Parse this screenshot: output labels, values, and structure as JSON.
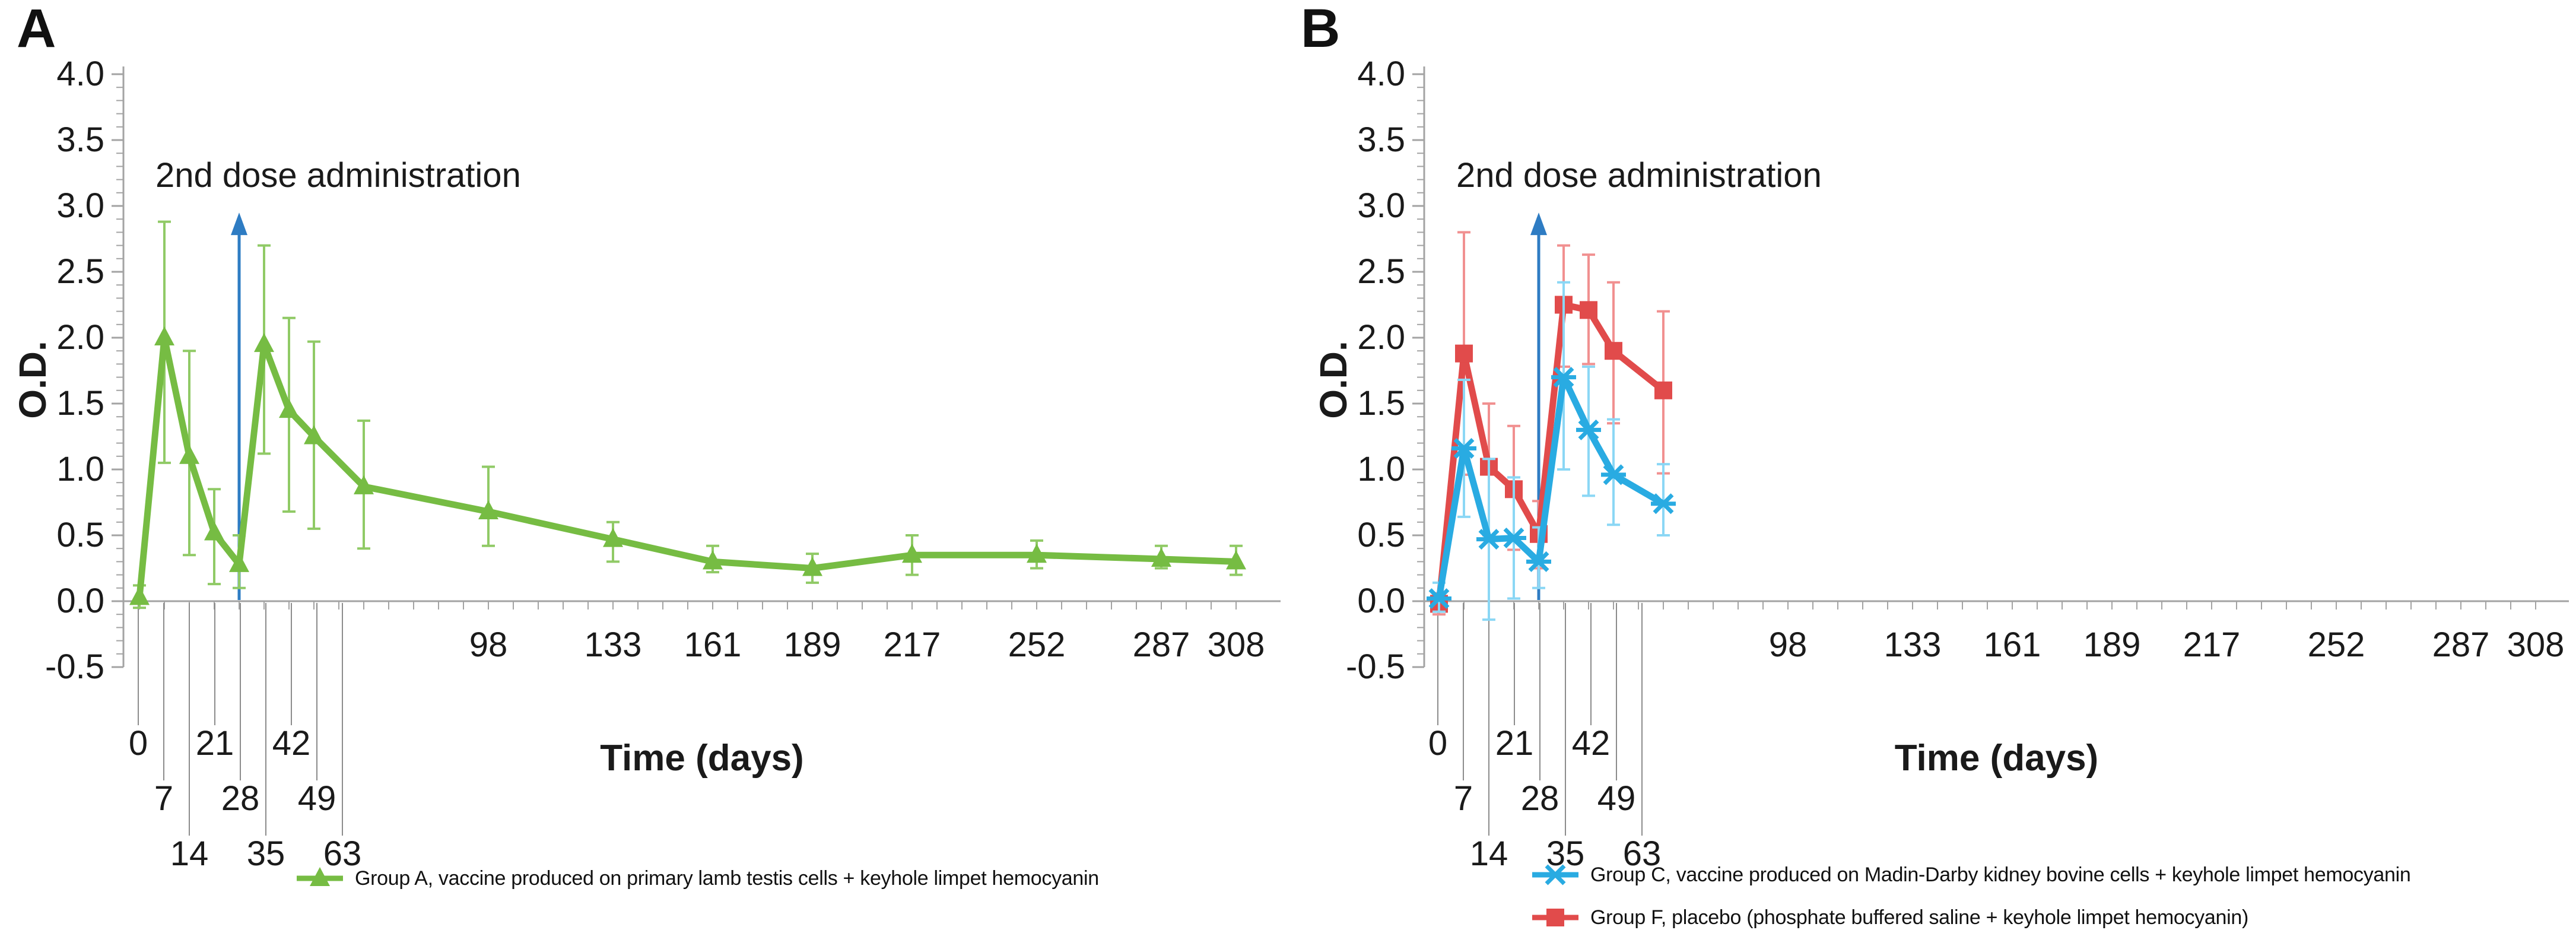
{
  "figure": {
    "background": "#ffffff"
  },
  "shared": {
    "colors": {
      "axis": "#a3a3a3",
      "leader_line": "#8c8c8c",
      "text": "#1a1a1a"
    },
    "y_axis": {
      "title": "O.D.",
      "min": -0.5,
      "max": 4.0,
      "major_tick_labels": [
        "4.0",
        "3.5",
        "3.0",
        "2.5",
        "2.0",
        "1.5",
        "1.0",
        "0.5",
        "0.0",
        "-0.5"
      ],
      "minor_step": 0.1
    },
    "x_axis": {
      "title": "Time (days)",
      "staggered_tick_labels": [
        0,
        7,
        14,
        21,
        28,
        35,
        42,
        49,
        63
      ],
      "inline_tick_labels": [
        98,
        133,
        161,
        189,
        217,
        252,
        287,
        308
      ],
      "minor_tick_step_days": 7,
      "max_day": 308
    },
    "annotation": {
      "text": "2nd dose administration",
      "day": 28,
      "arrow_top_od": 2.95,
      "arrow_color": "#2e7cc3"
    }
  },
  "chart_data": [
    {
      "type": "line",
      "panel_label": "A",
      "xlabel": "Time (days)",
      "ylabel": "O.D.",
      "ylim": [
        -0.5,
        4.0
      ],
      "grid": false,
      "series": [
        {
          "name": "Group A, vaccine produced on primary lamb testis cells + keyhole limpet hemocyanin",
          "color": "#76bc43",
          "error_color": "#90ca66",
          "marker": "triangle",
          "x": [
            0,
            7,
            14,
            21,
            28,
            35,
            42,
            49,
            63,
            98,
            133,
            161,
            189,
            217,
            252,
            287,
            308
          ],
          "y": [
            0.03,
            2.0,
            1.1,
            0.52,
            0.28,
            1.95,
            1.45,
            1.25,
            0.87,
            0.68,
            0.47,
            0.3,
            0.25,
            0.35,
            0.35,
            0.32,
            0.3
          ],
          "err_lo": [
            -0.05,
            1.05,
            0.35,
            0.13,
            0.1,
            1.12,
            0.68,
            0.55,
            0.4,
            0.42,
            0.3,
            0.22,
            0.14,
            0.2,
            0.25,
            0.25,
            0.2
          ],
          "err_hi": [
            0.12,
            2.88,
            1.9,
            0.85,
            0.5,
            2.7,
            2.15,
            1.97,
            1.37,
            1.02,
            0.6,
            0.42,
            0.36,
            0.5,
            0.46,
            0.42,
            0.42
          ]
        }
      ],
      "legend": [
        {
          "marker": "triangle",
          "color": "#76bc43",
          "text": "Group A, vaccine produced on primary lamb testis cells + keyhole limpet hemocyanin"
        }
      ]
    },
    {
      "type": "line",
      "panel_label": "B",
      "xlabel": "Time (days)",
      "ylabel": "O.D.",
      "ylim": [
        -0.5,
        4.0
      ],
      "grid": false,
      "series": [
        {
          "name": "Group F, placebo (phosphate buffered saline + keyhole limpet hemocyanin)",
          "color": "#e14b4b",
          "error_color": "#f19090",
          "marker": "square",
          "x": [
            0,
            7,
            14,
            21,
            28,
            35,
            42,
            49,
            63
          ],
          "y": [
            -0.02,
            1.88,
            1.02,
            0.85,
            0.51,
            2.25,
            2.21,
            1.9,
            1.6
          ],
          "err_lo": [
            -0.1,
            0.96,
            0.5,
            0.39,
            0.25,
            1.78,
            1.8,
            1.35,
            0.97
          ],
          "err_hi": [
            0.06,
            2.8,
            1.5,
            1.33,
            0.76,
            2.7,
            2.63,
            2.42,
            2.2
          ]
        },
        {
          "name": "Group C, vaccine produced on Madin-Darby kidney bovine cells + keyhole limpet hemocyanin",
          "color": "#29abe2",
          "error_color": "#8bd7f5",
          "marker": "asterisk",
          "x": [
            0,
            7,
            14,
            21,
            28,
            35,
            42,
            49,
            63
          ],
          "y": [
            0.02,
            1.16,
            0.47,
            0.48,
            0.3,
            1.7,
            1.3,
            0.96,
            0.74
          ],
          "err_lo": [
            -0.08,
            0.64,
            -0.14,
            0.02,
            0.1,
            1.0,
            0.8,
            0.58,
            0.5
          ],
          "err_hi": [
            0.14,
            1.68,
            1.08,
            0.94,
            0.56,
            2.42,
            1.78,
            1.38,
            1.04
          ]
        }
      ],
      "legend": [
        {
          "marker": "asterisk",
          "color": "#29abe2",
          "text": "Group C, vaccine produced on Madin-Darby kidney bovine cells + keyhole limpet hemocyanin"
        },
        {
          "marker": "square",
          "color": "#e14b4b",
          "text": "Group F, placebo (phosphate buffered saline + keyhole limpet hemocyanin)"
        }
      ]
    }
  ]
}
